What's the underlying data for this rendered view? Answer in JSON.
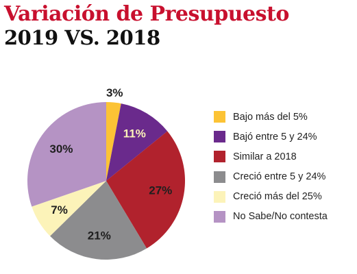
{
  "header": {
    "title": "Variación de Presupuesto",
    "subtitle": "2019 VS. 2018"
  },
  "chart_data": {
    "type": "pie",
    "title": "Variación de Presupuesto",
    "subtitle": "2019 VS. 2018",
    "unit": "%",
    "categories": [
      "Bajo más del 5%",
      "Bajó entre 5 y 24%",
      "Similar a 2018",
      "Creció entre 5 y 24%",
      "Creció más del 25%",
      "No Sabe/No contesta"
    ],
    "values": [
      3,
      11,
      27,
      21,
      7,
      30
    ],
    "data_labels": [
      "3%",
      "11%",
      "27%",
      "21%",
      "7%",
      "30%"
    ],
    "colors": [
      "#fcc335",
      "#6a2a8c",
      "#b1222d",
      "#8c8c8e",
      "#fcf3b9",
      "#b593c4"
    ],
    "label_colors": [
      "#1f1f1f",
      "#fcf3b9",
      "#1f1f1f",
      "#1f1f1f",
      "#1f1f1f",
      "#1f1f1f"
    ],
    "legend_position": "right"
  }
}
